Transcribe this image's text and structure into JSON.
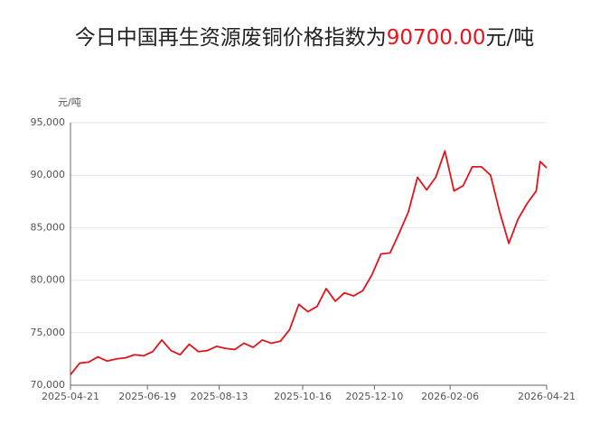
{
  "chart_data": {
    "type": "line",
    "title_prefix": "今日中国再生资源废铜价格指数为",
    "title_value": "90700.00",
    "title_suffix": "元/吨",
    "y_label": "元/吨",
    "x": [
      "2025-04-21",
      "2025-04-28",
      "2025-05-05",
      "2025-05-12",
      "2025-05-19",
      "2025-05-26",
      "2025-06-02",
      "2025-06-09",
      "2025-06-16",
      "2025-06-23",
      "2025-06-30",
      "2025-07-07",
      "2025-07-14",
      "2025-07-21",
      "2025-07-28",
      "2025-08-04",
      "2025-08-11",
      "2025-08-18",
      "2025-08-25",
      "2025-09-01",
      "2025-09-08",
      "2025-09-15",
      "2025-09-22",
      "2025-09-29",
      "2025-10-06",
      "2025-10-13",
      "2025-10-20",
      "2025-10-27",
      "2025-11-03",
      "2025-11-10",
      "2025-11-17",
      "2025-11-24",
      "2025-12-01",
      "2025-12-08",
      "2025-12-15",
      "2025-12-22",
      "2025-12-29",
      "2026-01-05",
      "2026-01-12",
      "2026-01-19",
      "2026-01-26",
      "2026-02-02",
      "2026-02-09",
      "2026-02-16",
      "2026-02-23",
      "2026-03-02",
      "2026-03-09",
      "2026-03-16",
      "2026-03-23",
      "2026-03-30",
      "2026-04-06",
      "2026-04-13",
      "2026-04-16",
      "2026-04-21"
    ],
    "series": [
      {
        "color": "#e0141c",
        "values": [
          71000,
          72100,
          72200,
          72700,
          72300,
          72500,
          72600,
          72900,
          72800,
          73200,
          74300,
          73300,
          72900,
          73900,
          73200,
          73300,
          73700,
          73500,
          73400,
          74000,
          73600,
          74300,
          74000,
          74200,
          75300,
          77700,
          77000,
          77500,
          79200,
          78000,
          78800,
          78500,
          79000,
          80500,
          82500,
          82600,
          84500,
          86500,
          89800,
          88600,
          89800,
          92300,
          88500,
          89000,
          90800,
          90800,
          90000,
          86500,
          83500,
          85800,
          87300,
          88500,
          91300,
          90700
        ]
      }
    ],
    "xlim": [
      "2025-04-21",
      "2026-04-21"
    ],
    "xticks": [
      "2025-04-21",
      "2025-06-19",
      "2025-08-13",
      "2025-10-16",
      "2025-12-10",
      "2026-02-06",
      "2026-04-21"
    ],
    "ylim": [
      70000,
      95000
    ],
    "yticks": [
      {
        "value": 70000,
        "label": "70,000"
      },
      {
        "value": 75000,
        "label": "75,000"
      },
      {
        "value": 80000,
        "label": "80,000"
      },
      {
        "value": 85000,
        "label": "85,000"
      },
      {
        "value": 90000,
        "label": "90,000"
      },
      {
        "value": 95000,
        "label": "95,000"
      }
    ],
    "grid": true
  }
}
